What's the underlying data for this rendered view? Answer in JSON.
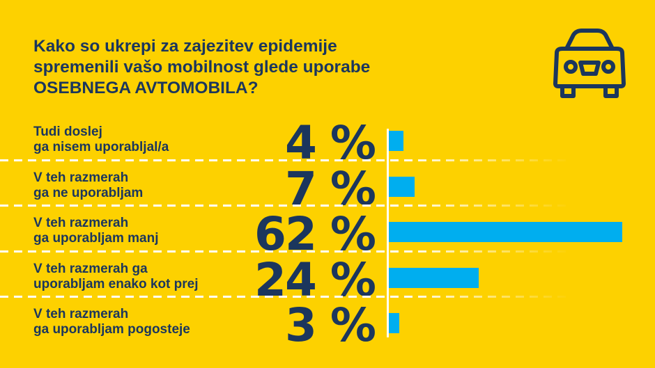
{
  "title": [
    "Kako so ukrepi za zajezitev epidemije",
    "spremenili vašo mobilnost glede uporabe",
    "OSEBNEGA AVTOMOBILA?"
  ],
  "icon": "car-icon",
  "colors": {
    "background": "#FDD100",
    "text": "#1B365D",
    "bar": "#00AEEF",
    "axis": "#FFFFFF"
  },
  "chart_data": {
    "type": "bar",
    "orientation": "horizontal",
    "categories": [
      [
        "Tudi doslej",
        "ga nisem uporabljal/a"
      ],
      [
        "V teh razmerah",
        "ga ne uporabljam"
      ],
      [
        "V teh razmerah",
        "ga uporabljam manj"
      ],
      [
        "V teh razmerah ga",
        "uporabljam enako kot prej"
      ],
      [
        "V teh razmerah",
        "ga uporabljam pogosteje"
      ]
    ],
    "values": [
      4,
      7,
      62,
      24,
      3
    ],
    "value_labels": [
      "4 %",
      "7 %",
      "62 %",
      "24 %",
      "3 %"
    ],
    "unit": "%",
    "grid": false,
    "legend": "none"
  }
}
